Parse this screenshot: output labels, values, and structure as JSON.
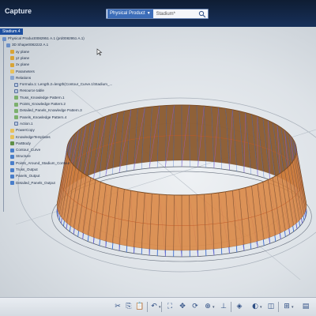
{
  "titlebar": {
    "app_title": "Capture",
    "search_scope": "Physical Product",
    "search_text": "Stadium*"
  },
  "tree": {
    "tab": "Stadium.4",
    "items": [
      {
        "label": "Physical Product0082951 A.1 (prd0082951 A.1)",
        "icon": "product",
        "indent": 0
      },
      {
        "label": "3D Shape0082222 A.1",
        "icon": "product",
        "indent": 1
      },
      {
        "label": "xy plane",
        "icon": "plane",
        "indent": 2
      },
      {
        "label": "yz plane",
        "icon": "plane",
        "indent": 2
      },
      {
        "label": "zx plane",
        "icon": "plane",
        "indent": 2
      },
      {
        "label": "Parameters",
        "icon": "folder",
        "indent": 2
      },
      {
        "label": "Relations",
        "icon": "rel",
        "indent": 2
      },
      {
        "label": "Formula.1: Length.2=length(Contour_Curve.1\\Stadium_...",
        "icon": "formula",
        "indent": 3
      },
      {
        "label": "Resource table",
        "icon": "formula",
        "indent": 3
      },
      {
        "label": "Truss_Knowledge Pattern.1",
        "icon": "pattern",
        "indent": 3
      },
      {
        "label": "Points_Knowledge Pattern.2",
        "icon": "pattern",
        "indent": 3
      },
      {
        "label": "Detailed_Panels_Knowledge Pattern.3",
        "icon": "pattern",
        "indent": 3
      },
      {
        "label": "Panels_Knowledge Pattern.4",
        "icon": "pattern",
        "indent": 3
      },
      {
        "label": "Action.1",
        "icon": "formula",
        "indent": 3
      },
      {
        "label": "PowerCopy",
        "icon": "folder",
        "indent": 2
      },
      {
        "label": "KnowledgeTemplates",
        "icon": "folder",
        "indent": 2
      },
      {
        "label": "PartBody",
        "icon": "body",
        "indent": 2
      },
      {
        "label": "Contour_Curve",
        "icon": "geom",
        "indent": 2
      },
      {
        "label": "Structure",
        "icon": "geom",
        "indent": 2
      },
      {
        "label": "Points_Around_Stadium_Contour",
        "icon": "geom",
        "indent": 2
      },
      {
        "label": "Truss_Output",
        "icon": "geom",
        "indent": 2
      },
      {
        "label": "Panels_Output",
        "icon": "geom",
        "indent": 2
      },
      {
        "label": "Detailed_Panels_Output",
        "icon": "geom",
        "indent": 2
      }
    ]
  },
  "colors": {
    "title_bar": "#0f1d33",
    "truss_blue": "#3e6fd3",
    "panel_orange": "#d9823c",
    "panel_brown": "#8a5a2e",
    "diagonal_purple": "#9b59d0"
  },
  "toolbar": {
    "buttons": [
      "cut-icon",
      "copy-icon",
      "paste-icon",
      "undo-icon",
      "fit-all-icon",
      "pan-icon",
      "rotate-icon",
      "zoom-icon",
      "normal-view-icon",
      "iso-view-icon",
      "render-style-icon",
      "hide-show-icon",
      "measure-icon",
      "layer-icon"
    ]
  }
}
